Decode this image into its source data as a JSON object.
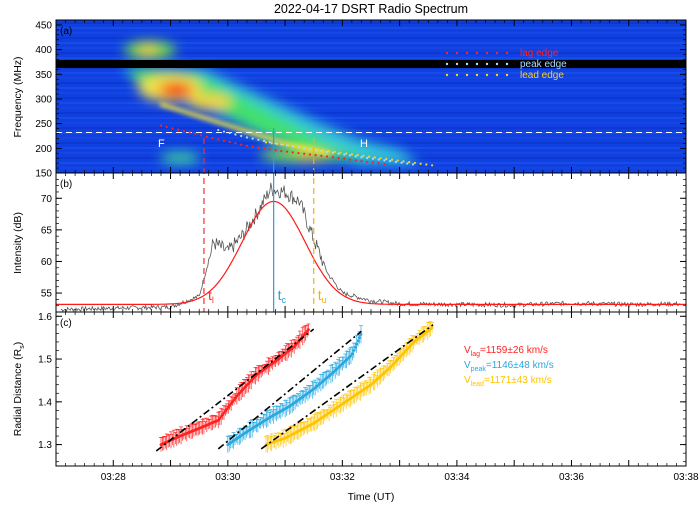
{
  "title": "2022-04-17 DSRT Radio Spectrum",
  "x_axis_label": "Time (UT)",
  "chart_data": [
    {
      "panel": "(a)",
      "type": "heatmap",
      "ylabel": "Frequency (MHz)",
      "yticks": [
        150,
        200,
        250,
        300,
        350,
        400,
        450
      ],
      "ylim": [
        150,
        460
      ],
      "xlim": [
        "03:27",
        "03:38"
      ],
      "colormap": "rainbow",
      "annotations": [
        "F",
        "H"
      ],
      "dashed_line_mhz": 232,
      "legend": {
        "placement": "top-right",
        "entries": [
          "lag edge",
          "peak edge",
          "lead edge"
        ]
      },
      "series": [
        {
          "name": "lag edge",
          "color": "#ff2222",
          "x": [
            "03:28:50",
            "03:29:20",
            "03:29:50",
            "03:30:20",
            "03:30:50",
            "03:31:20",
            "03:31:50",
            "03:32:20",
            "03:32:50"
          ],
          "values": [
            246,
            232,
            218,
            205,
            196,
            189,
            182,
            174,
            167
          ]
        },
        {
          "name": "peak edge",
          "color": "#aaddff",
          "x": [
            "03:29:50",
            "03:30:20",
            "03:30:50",
            "03:31:20",
            "03:31:50",
            "03:32:20",
            "03:32:50",
            "03:33:20"
          ],
          "values": [
            237,
            222,
            210,
            200,
            191,
            182,
            174,
            166
          ]
        },
        {
          "name": "lead edge",
          "color": "#ffd020",
          "x": [
            "03:30:40",
            "03:31:10",
            "03:31:40",
            "03:32:10",
            "03:32:40",
            "03:33:10",
            "03:33:40"
          ],
          "values": [
            212,
            204,
            196,
            188,
            180,
            172,
            164
          ]
        }
      ]
    },
    {
      "panel": "(b)",
      "type": "line",
      "ylabel": "Intensity (dB)",
      "yticks": [
        55,
        60,
        65,
        70
      ],
      "ylim": [
        52,
        74
      ],
      "series": [
        {
          "name": "observed",
          "color": "#555555",
          "x": [
            "03:27:05",
            "03:28:00",
            "03:29:00",
            "03:29:30",
            "03:29:45",
            "03:30:00",
            "03:30:15",
            "03:30:30",
            "03:30:45",
            "03:31:00",
            "03:31:15",
            "03:31:30",
            "03:31:45",
            "03:32:00",
            "03:32:30",
            "03:33:00",
            "03:34:00",
            "03:35:00",
            "03:36:00",
            "03:37:00",
            "03:37:55"
          ],
          "values": [
            52.4,
            52.6,
            52.8,
            54.5,
            63.0,
            61.5,
            64.0,
            67.5,
            71.5,
            71.0,
            69.5,
            63.5,
            58.0,
            55.0,
            53.8,
            53.3,
            53.2,
            53.1,
            53.4,
            53.2,
            53.3
          ]
        },
        {
          "name": "gaussian fit",
          "color": "#ff1a1a",
          "peak_time": "03:30:48",
          "peak_db": 69.5,
          "baseline_db": 53.2,
          "sigma_min": 0.55
        }
      ],
      "markers": [
        {
          "label": "t",
          "sub": "l",
          "x": "03:29:35",
          "color": "#ff2a2a"
        },
        {
          "label": "t",
          "sub": "c",
          "x": "03:30:48",
          "color": "#2aa0d6"
        },
        {
          "label": "t",
          "sub": "u",
          "x": "03:31:30",
          "color": "#f2b400"
        }
      ]
    },
    {
      "panel": "(c)",
      "type": "scatter",
      "ylabel": "Radial Distance (R",
      "ylabel_sub": "s",
      "ylabel_end": ")",
      "yticks": [
        1.3,
        1.4,
        1.5,
        1.6
      ],
      "ylim": [
        1.25,
        1.61
      ],
      "xticks": [
        "03:28",
        "03:30",
        "03:32",
        "03:34",
        "03:36",
        "03:38"
      ],
      "xlim": [
        "03:27",
        "03:38"
      ],
      "series": [
        {
          "name": "lag",
          "color": "#ff2222",
          "fit": {
            "x": [
              "03:28:45",
              "03:31:30"
            ],
            "values": [
              1.285,
              1.57
            ]
          },
          "x": [
            "03:28:50",
            "03:29:10",
            "03:29:30",
            "03:29:50",
            "03:30:10",
            "03:30:30",
            "03:30:50",
            "03:31:10",
            "03:31:25"
          ],
          "values": [
            1.3,
            1.32,
            1.338,
            1.357,
            1.415,
            1.463,
            1.495,
            1.53,
            1.57
          ]
        },
        {
          "name": "peak",
          "color": "#29a8e0",
          "fit": {
            "x": [
              "03:29:50",
              "03:32:20"
            ],
            "values": [
              1.29,
              1.565
            ]
          },
          "x": [
            "03:30:00",
            "03:30:20",
            "03:30:45",
            "03:31:05",
            "03:31:30",
            "03:31:50",
            "03:32:10",
            "03:32:20"
          ],
          "values": [
            1.3,
            1.33,
            1.365,
            1.39,
            1.43,
            1.468,
            1.51,
            1.56
          ]
        },
        {
          "name": "lead",
          "color": "#ffc400",
          "fit": {
            "x": [
              "03:30:35",
              "03:33:35"
            ],
            "values": [
              1.29,
              1.58
            ]
          },
          "x": [
            "03:30:40",
            "03:31:00",
            "03:31:30",
            "03:32:00",
            "03:32:30",
            "03:32:50",
            "03:33:15",
            "03:33:35"
          ],
          "values": [
            1.3,
            1.315,
            1.35,
            1.395,
            1.44,
            1.48,
            1.54,
            1.575
          ]
        }
      ],
      "speed_labels": [
        {
          "main": "V",
          "sub": "lag",
          "value": "=1159±26 km/s",
          "color": "#ff2222"
        },
        {
          "main": "V",
          "sub": "peak",
          "value": "=1146±48 km/s",
          "color": "#29a8e0"
        },
        {
          "main": "V",
          "sub": "lead",
          "value": "=1171±43 km/s",
          "color": "#ffc400"
        }
      ]
    }
  ]
}
